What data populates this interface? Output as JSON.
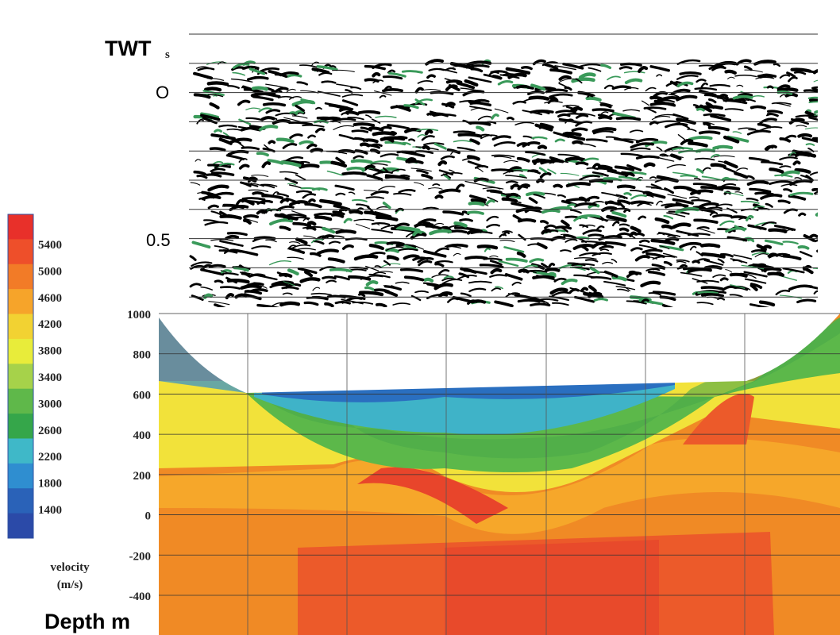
{
  "seismic": {
    "axis_label": "TWT",
    "axis_unit": "s",
    "ticks": [
      "O",
      "0.5"
    ]
  },
  "depth": {
    "axis_label": "Depth m",
    "ticks": [
      1000,
      800,
      600,
      400,
      200,
      0,
      -200,
      -400
    ]
  },
  "colorbar": {
    "levels": [
      5400,
      5000,
      4600,
      4200,
      3800,
      3400,
      3000,
      2600,
      2200,
      1800,
      1400
    ],
    "label_line1": "velocity",
    "label_line2": "(m/s)"
  }
}
